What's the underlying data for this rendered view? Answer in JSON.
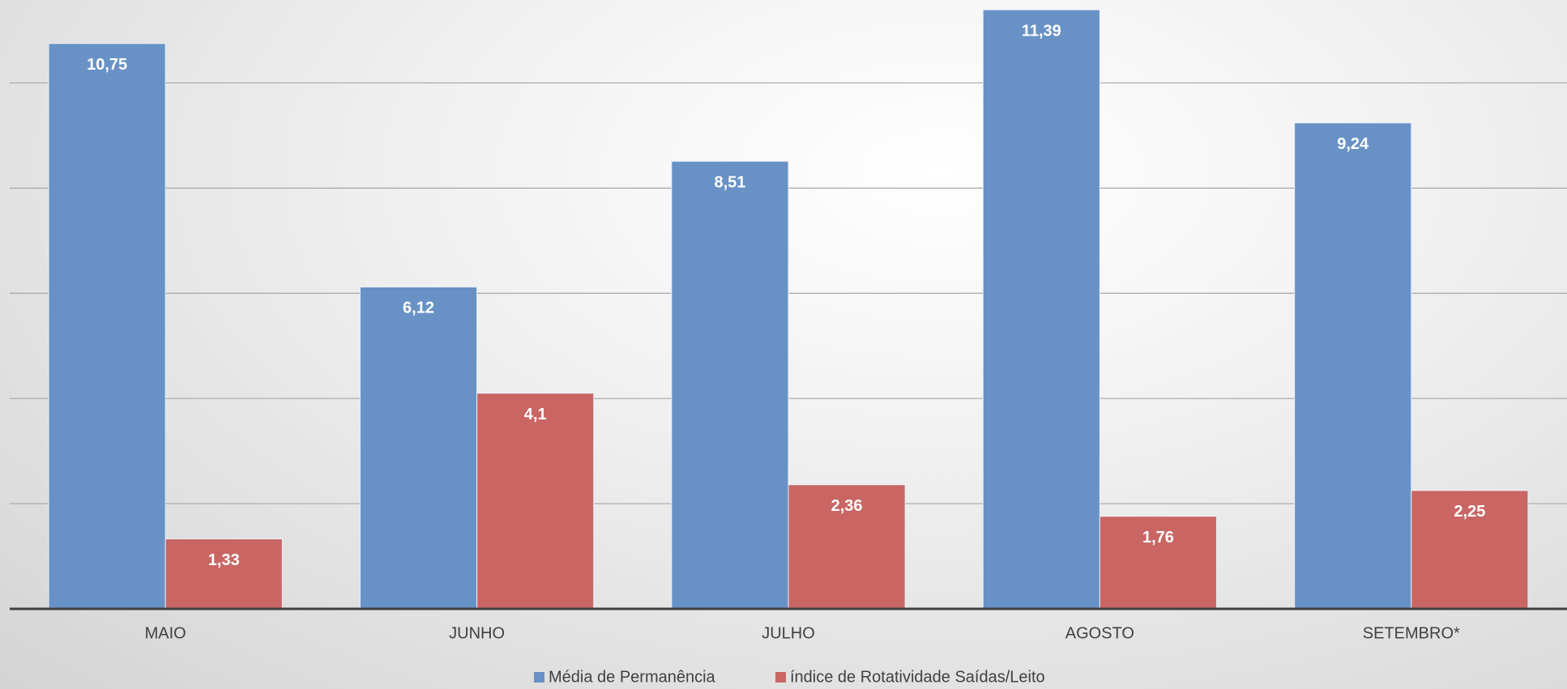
{
  "chart_data": {
    "type": "bar",
    "categories": [
      "MAIO",
      "JUNHO",
      "JULHO",
      "AGOSTO",
      "SETEMBRO*"
    ],
    "series": [
      {
        "name": "Média de Permanência",
        "color": "#6892c6",
        "values": [
          10.75,
          6.12,
          8.51,
          11.39,
          9.24
        ],
        "value_labels": [
          "10,75",
          "6,12",
          "8,51",
          "11,39",
          "9,24"
        ]
      },
      {
        "name": "índice de Rotatividade Saídas/Leito",
        "color": "#c96664",
        "values": [
          1.33,
          4.1,
          2.36,
          1.76,
          2.25
        ],
        "value_labels": [
          "1,33",
          "4,1",
          "2,36",
          "1,76",
          "2,25"
        ]
      }
    ],
    "ylim": [
      0,
      11.5
    ],
    "yticks": [
      2,
      4,
      6,
      8,
      10
    ],
    "grid": true,
    "legend": "bottom"
  }
}
